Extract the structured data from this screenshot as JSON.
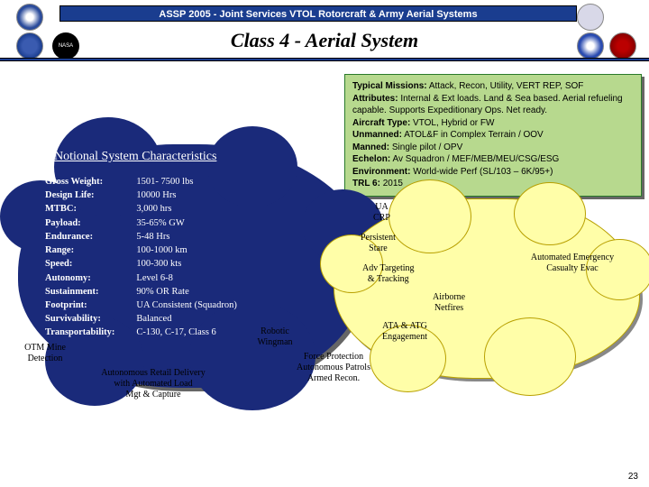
{
  "header_bar": "ASSP 2005 - Joint Services VTOL Rotorcraft & Army Aerial Systems",
  "title": "Class 4 - Aerial System",
  "nasa": "NASA",
  "page_num": "23",
  "mission": {
    "l1a": "Typical Missions:",
    "l1b": " Attack, Recon, Utility, VERT REP, SOF",
    "l2a": "Attributes:",
    "l2b": " Internal & Ext loads.  Land & Sea based.  Aerial refueling capable. Supports Expeditionary Ops.  Net ready.",
    "l3a": "Aircraft Type:",
    "l3b": " VTOL, Hybrid or FW",
    "l4a": "Unmanned:",
    "l4b": "  ATOL&F in Complex Terrain / OOV",
    "l5a": "Manned:",
    "l5b": " Single pilot / OPV",
    "l6a": "Echelon:",
    "l6b": " Av Squadron / MEF/MEB/MEU/CSG/ESG",
    "l7a": "Environment:",
    "l7b": " World-wide Perf (SL/103 – 6K/95+)",
    "l8a": "TRL 6:",
    "l8b": " 2015"
  },
  "notional_title": "Notional System Characteristics",
  "chars": {
    "labels": [
      "Gross Weight:",
      "Design Life:",
      "MTBC:",
      "Payload:",
      "Endurance:",
      "Range:",
      "Speed:",
      "Autonomy:",
      "Sustainment:",
      "Footprint:",
      "Survivability:",
      "Transportability:"
    ],
    "values": [
      "1501- 7500 lbs",
      "10000 Hrs",
      "3,000 hrs",
      "35-65% GW",
      "5-48 Hrs",
      "100-1000 km",
      "100-300 kts",
      "Level 6-8",
      "90% OR Rate",
      "UA Consistent (Squadron)",
      "Balanced",
      "C-130, C-17, Class 6"
    ]
  },
  "cloud2": {
    "i1": "UA\nCRP",
    "i2": "Persistent\nStare",
    "i3": "Adv Targeting\n& Tracking",
    "i4": "Airborne\nNetfires",
    "i5": "ATA & ATG\nEngagement",
    "i6": "Automated Emergency\nCasualty Evac"
  },
  "below": {
    "b1": "OTM Mine\nDetection",
    "b2": "Autonomous Retail Delivery\nwith Automated Load\nMgt & Capture",
    "b3": "Robotic\nWingman",
    "b4": "Force Protection\nAutonomous Patrols\nArmed Recon."
  }
}
